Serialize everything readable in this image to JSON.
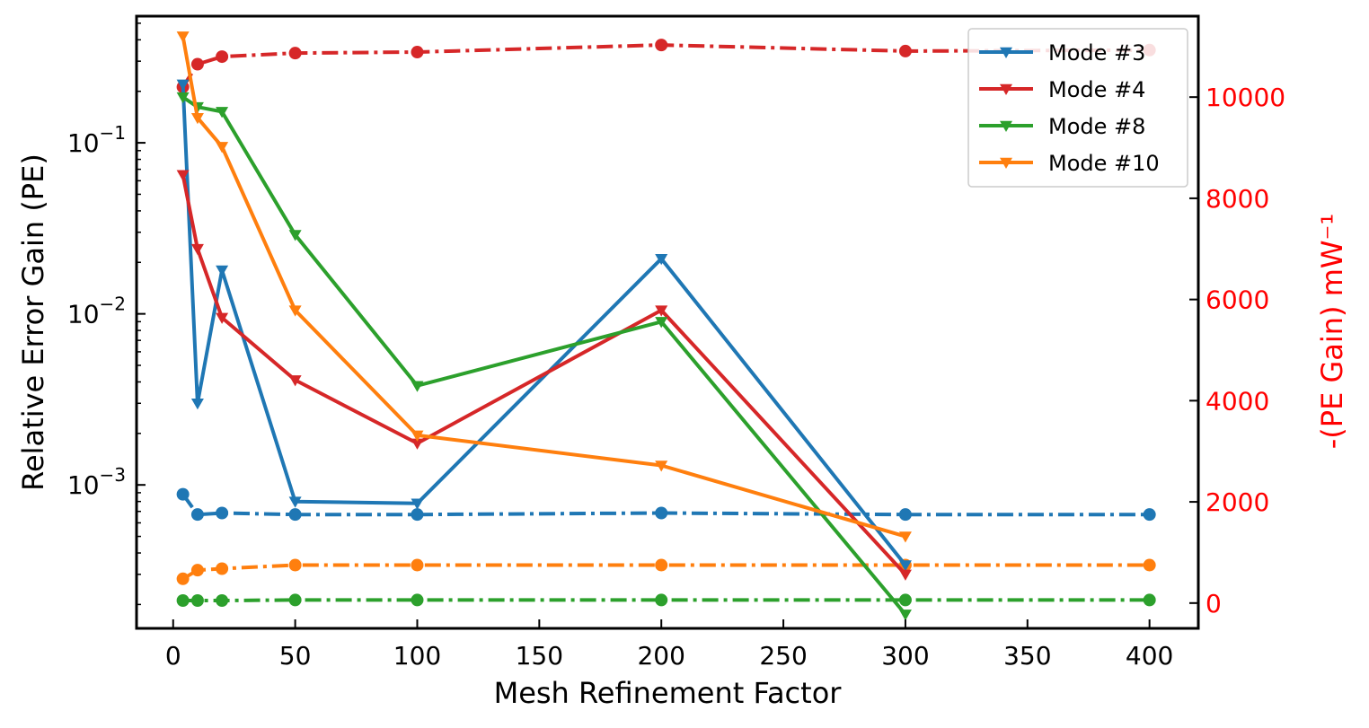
{
  "chart_data": {
    "type": "line",
    "title": "",
    "xlabel": "Mesh Refinement Factor",
    "ylabel_left": "Relative Error Gain (PE)",
    "ylabel_right": "-(PE Gain)  mW⁻¹",
    "x_ticks": [
      "0",
      "50",
      "100",
      "150",
      "200",
      "250",
      "300",
      "350",
      "400"
    ],
    "x_range": [
      -15,
      420
    ],
    "y_left_scale": "log",
    "y_left_range": [
      0.000145,
      0.55
    ],
    "y_left_ticks": [
      {
        "value": 0.1,
        "base": "10",
        "exp": "−1"
      },
      {
        "value": 0.01,
        "base": "10",
        "exp": "−2"
      },
      {
        "value": 0.001,
        "base": "10",
        "exp": "−3"
      }
    ],
    "y_right_scale": "linear",
    "y_right_range": [
      -500,
      11600
    ],
    "y_right_ticks": [
      "0",
      "2000",
      "4000",
      "6000",
      "8000",
      "10000"
    ],
    "right_axis_color": "#ff0000",
    "grid": false,
    "legend_position": "top-right",
    "error_series": [
      {
        "name": "Mode #3",
        "color": "#1f77b4",
        "x": [
          4,
          10,
          20,
          50,
          100,
          200,
          300
        ],
        "y": [
          0.22,
          0.003,
          0.018,
          0.0008,
          0.00078,
          0.021,
          0.00034
        ]
      },
      {
        "name": "Mode #4",
        "color": "#d62728",
        "x": [
          4,
          10,
          20,
          50,
          100,
          200,
          300
        ],
        "y": [
          0.065,
          0.024,
          0.0095,
          0.0041,
          0.00175,
          0.0105,
          0.0003
        ]
      },
      {
        "name": "Mode #8",
        "color": "#2ca02c",
        "x": [
          4,
          10,
          20,
          50,
          100,
          200,
          300
        ],
        "y": [
          0.185,
          0.162,
          0.152,
          0.029,
          0.0038,
          0.009,
          0.000175
        ]
      },
      {
        "name": "Mode #10",
        "color": "#ff7f0e",
        "x": [
          4,
          10,
          20,
          50,
          100,
          200,
          300
        ],
        "y": [
          0.42,
          0.14,
          0.095,
          0.0105,
          0.00195,
          0.0013,
          0.0005
        ]
      }
    ],
    "gain_series": [
      {
        "color": "#1f77b4",
        "x": [
          4,
          10,
          20,
          50,
          100,
          200,
          300,
          400
        ],
        "y": [
          2150,
          1750,
          1780,
          1750,
          1750,
          1780,
          1750,
          1750
        ]
      },
      {
        "color": "#d62728",
        "x": [
          4,
          10,
          20,
          50,
          100,
          200,
          300,
          400
        ],
        "y": [
          10200,
          10650,
          10800,
          10870,
          10890,
          11030,
          10910,
          10930
        ]
      },
      {
        "color": "#2ca02c",
        "x": [
          4,
          10,
          20,
          50,
          100,
          200,
          300,
          400
        ],
        "y": [
          50,
          50,
          50,
          60,
          60,
          60,
          60,
          60
        ]
      },
      {
        "color": "#ff7f0e",
        "x": [
          4,
          10,
          20,
          50,
          100,
          200,
          300,
          400
        ],
        "y": [
          480,
          650,
          680,
          750,
          750,
          750,
          750,
          750
        ]
      }
    ]
  }
}
